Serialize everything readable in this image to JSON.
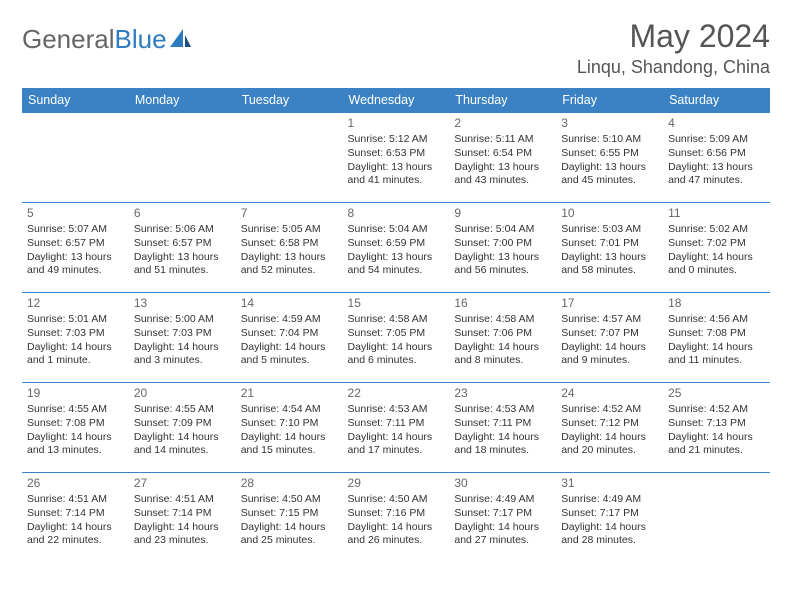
{
  "brand": {
    "part1": "General",
    "part2": "Blue"
  },
  "title": "May 2024",
  "location": "Linqu, Shandong, China",
  "colors": {
    "header_bg": "#3b82c4",
    "header_text": "#ffffff",
    "body_text": "#333333",
    "muted": "#666666",
    "rule": "#3b82c4",
    "logo_gray": "#666666",
    "logo_blue": "#2f7bbf"
  },
  "weekdays": [
    "Sunday",
    "Monday",
    "Tuesday",
    "Wednesday",
    "Thursday",
    "Friday",
    "Saturday"
  ],
  "weeks": [
    [
      null,
      null,
      null,
      {
        "n": "1",
        "sunrise": "5:12 AM",
        "sunset": "6:53 PM",
        "daylight": "13 hours and 41 minutes."
      },
      {
        "n": "2",
        "sunrise": "5:11 AM",
        "sunset": "6:54 PM",
        "daylight": "13 hours and 43 minutes."
      },
      {
        "n": "3",
        "sunrise": "5:10 AM",
        "sunset": "6:55 PM",
        "daylight": "13 hours and 45 minutes."
      },
      {
        "n": "4",
        "sunrise": "5:09 AM",
        "sunset": "6:56 PM",
        "daylight": "13 hours and 47 minutes."
      }
    ],
    [
      {
        "n": "5",
        "sunrise": "5:07 AM",
        "sunset": "6:57 PM",
        "daylight": "13 hours and 49 minutes."
      },
      {
        "n": "6",
        "sunrise": "5:06 AM",
        "sunset": "6:57 PM",
        "daylight": "13 hours and 51 minutes."
      },
      {
        "n": "7",
        "sunrise": "5:05 AM",
        "sunset": "6:58 PM",
        "daylight": "13 hours and 52 minutes."
      },
      {
        "n": "8",
        "sunrise": "5:04 AM",
        "sunset": "6:59 PM",
        "daylight": "13 hours and 54 minutes."
      },
      {
        "n": "9",
        "sunrise": "5:04 AM",
        "sunset": "7:00 PM",
        "daylight": "13 hours and 56 minutes."
      },
      {
        "n": "10",
        "sunrise": "5:03 AM",
        "sunset": "7:01 PM",
        "daylight": "13 hours and 58 minutes."
      },
      {
        "n": "11",
        "sunrise": "5:02 AM",
        "sunset": "7:02 PM",
        "daylight": "14 hours and 0 minutes."
      }
    ],
    [
      {
        "n": "12",
        "sunrise": "5:01 AM",
        "sunset": "7:03 PM",
        "daylight": "14 hours and 1 minute."
      },
      {
        "n": "13",
        "sunrise": "5:00 AM",
        "sunset": "7:03 PM",
        "daylight": "14 hours and 3 minutes."
      },
      {
        "n": "14",
        "sunrise": "4:59 AM",
        "sunset": "7:04 PM",
        "daylight": "14 hours and 5 minutes."
      },
      {
        "n": "15",
        "sunrise": "4:58 AM",
        "sunset": "7:05 PM",
        "daylight": "14 hours and 6 minutes."
      },
      {
        "n": "16",
        "sunrise": "4:58 AM",
        "sunset": "7:06 PM",
        "daylight": "14 hours and 8 minutes."
      },
      {
        "n": "17",
        "sunrise": "4:57 AM",
        "sunset": "7:07 PM",
        "daylight": "14 hours and 9 minutes."
      },
      {
        "n": "18",
        "sunrise": "4:56 AM",
        "sunset": "7:08 PM",
        "daylight": "14 hours and 11 minutes."
      }
    ],
    [
      {
        "n": "19",
        "sunrise": "4:55 AM",
        "sunset": "7:08 PM",
        "daylight": "14 hours and 13 minutes."
      },
      {
        "n": "20",
        "sunrise": "4:55 AM",
        "sunset": "7:09 PM",
        "daylight": "14 hours and 14 minutes."
      },
      {
        "n": "21",
        "sunrise": "4:54 AM",
        "sunset": "7:10 PM",
        "daylight": "14 hours and 15 minutes."
      },
      {
        "n": "22",
        "sunrise": "4:53 AM",
        "sunset": "7:11 PM",
        "daylight": "14 hours and 17 minutes."
      },
      {
        "n": "23",
        "sunrise": "4:53 AM",
        "sunset": "7:11 PM",
        "daylight": "14 hours and 18 minutes."
      },
      {
        "n": "24",
        "sunrise": "4:52 AM",
        "sunset": "7:12 PM",
        "daylight": "14 hours and 20 minutes."
      },
      {
        "n": "25",
        "sunrise": "4:52 AM",
        "sunset": "7:13 PM",
        "daylight": "14 hours and 21 minutes."
      }
    ],
    [
      {
        "n": "26",
        "sunrise": "4:51 AM",
        "sunset": "7:14 PM",
        "daylight": "14 hours and 22 minutes."
      },
      {
        "n": "27",
        "sunrise": "4:51 AM",
        "sunset": "7:14 PM",
        "daylight": "14 hours and 23 minutes."
      },
      {
        "n": "28",
        "sunrise": "4:50 AM",
        "sunset": "7:15 PM",
        "daylight": "14 hours and 25 minutes."
      },
      {
        "n": "29",
        "sunrise": "4:50 AM",
        "sunset": "7:16 PM",
        "daylight": "14 hours and 26 minutes."
      },
      {
        "n": "30",
        "sunrise": "4:49 AM",
        "sunset": "7:17 PM",
        "daylight": "14 hours and 27 minutes."
      },
      {
        "n": "31",
        "sunrise": "4:49 AM",
        "sunset": "7:17 PM",
        "daylight": "14 hours and 28 minutes."
      },
      null
    ]
  ],
  "labels": {
    "sunrise": "Sunrise: ",
    "sunset": "Sunset: ",
    "daylight": "Daylight: "
  }
}
